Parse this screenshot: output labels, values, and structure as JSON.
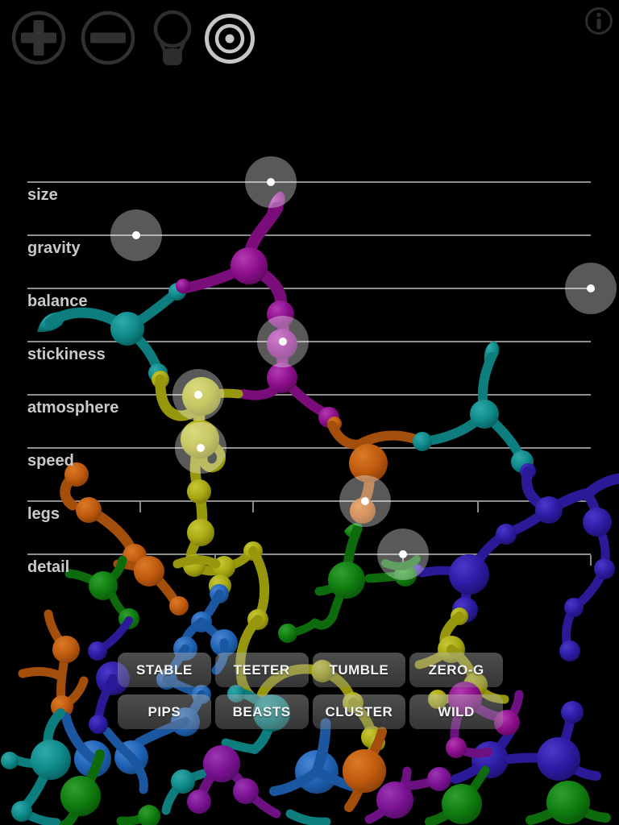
{
  "toolbar": {
    "buttons": [
      {
        "id": "add",
        "icon": "plus-circle-icon",
        "active": false
      },
      {
        "id": "remove",
        "icon": "minus-circle-icon",
        "active": false
      },
      {
        "id": "ideas",
        "icon": "lightbulb-icon",
        "active": false
      },
      {
        "id": "target",
        "icon": "bullseye-icon",
        "active": true
      }
    ],
    "info_icon": "info-icon"
  },
  "sliders": [
    {
      "label": "size",
      "value_pct": 43.2
    },
    {
      "label": "gravity",
      "value_pct": 19.3
    },
    {
      "label": "balance",
      "value_pct": 100
    },
    {
      "label": "stickiness",
      "value_pct": 45.4
    },
    {
      "label": "atmosphere",
      "value_pct": 30.3
    },
    {
      "label": "speed",
      "value_pct": 30.8
    },
    {
      "label": "legs",
      "value_pct": 60,
      "ticks_pct": [
        20,
        40,
        60,
        80,
        100
      ]
    },
    {
      "label": "detail",
      "value_pct": 66.6,
      "ticks_pct": [
        33.3,
        66.6,
        100
      ]
    }
  ],
  "presets": {
    "row1": [
      "STABLE",
      "TEETER",
      "TUMBLE",
      "ZERO-G"
    ],
    "row2": [
      "PIPS",
      "BEASTS",
      "CLUSTER",
      "WILD"
    ]
  },
  "colors": {
    "background": "#000000",
    "slider_line": "#8f8f8f",
    "slider_label": "#c9c9c9",
    "handle_fill": "rgba(255,255,255,0.35)",
    "handle_dot": "#ffffff",
    "preset_button_fill": "rgba(170,170,170,0.40)",
    "preset_text": "#f5f5f5",
    "toolbar_icon_dim": "#313131",
    "toolbar_icon_active": "#c6c6c6",
    "creature_magenta": "#8c0e8c",
    "creature_teal": "#0f8989",
    "creature_yellow": "#a8a812",
    "creature_orange": "#bf5a0e",
    "creature_indigo": "#2c1ca2",
    "creature_blue": "#1f63b5",
    "creature_green": "#107c10",
    "creature_purple": "#7a1292"
  }
}
